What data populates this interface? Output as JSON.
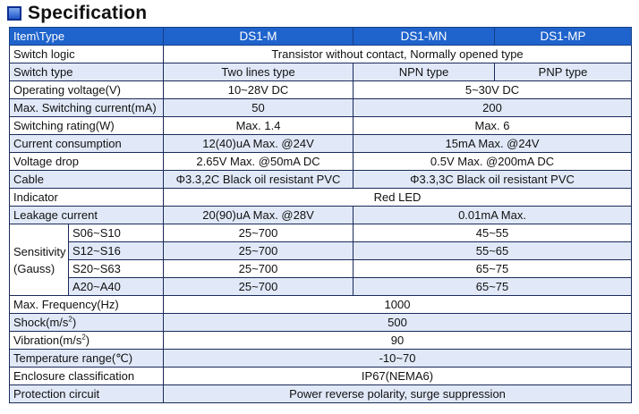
{
  "heading": {
    "title": "Specification",
    "icon": "square-bullet-icon"
  },
  "colors": {
    "header_bg": "#1f63cc",
    "shade_bg": "#e1e9f8",
    "border": "#1a2a5a"
  },
  "header": {
    "item": "Item\\Type",
    "m": "DS1-M",
    "mn": "DS1-MN",
    "mp": "DS1-MP"
  },
  "rows": {
    "switch_logic": {
      "label": "Switch logic",
      "all": "Transistor without contact, Normally opened type"
    },
    "switch_type": {
      "label": "Switch type",
      "m": "Two lines type",
      "mn": "NPN type",
      "mp": "PNP type"
    },
    "operating_voltage": {
      "label": "Operating voltage(V)",
      "m": "10~28V DC",
      "mn_mp": "5~30V DC"
    },
    "max_switching_current": {
      "label": "Max. Switching current(mA)",
      "m": "50",
      "mn_mp": "200"
    },
    "switching_rating": {
      "label": "Switching rating(W)",
      "m": "Max. 1.4",
      "mn_mp": "Max. 6"
    },
    "current_consumption": {
      "label": "Current consumption",
      "m": "12(40)uA Max. @24V",
      "mn_mp": "15mA Max. @24V"
    },
    "voltage_drop": {
      "label": "Voltage drop",
      "m": "2.65V Max. @50mA DC",
      "mn_mp": "0.5V Max. @200mA DC"
    },
    "cable": {
      "label": "Cable",
      "m": "Φ3.3,2C Black oil resistant PVC",
      "mn_mp": "Φ3.3,3C Black oil resistant PVC"
    },
    "indicator": {
      "label": "Indicator",
      "all": "Red LED"
    },
    "leakage_current": {
      "label": "Leakage current",
      "m": "20(90)uA Max. @28V",
      "mn_mp": "0.01mA Max."
    }
  },
  "sensitivity": {
    "label_line1": "Sensitivity",
    "label_line2": "(Gauss)",
    "items": [
      {
        "model": "S06~S10",
        "m": "25~700",
        "mn_mp": "45~55"
      },
      {
        "model": "S12~S16",
        "m": "25~700",
        "mn_mp": "55~65"
      },
      {
        "model": "S20~S63",
        "m": "25~700",
        "mn_mp": "65~75"
      },
      {
        "model": "A20~A40",
        "m": "25~700",
        "mn_mp": "65~75"
      }
    ]
  },
  "rows2": {
    "max_frequency": {
      "label": "Max. Frequency(Hz)",
      "all": "1000"
    },
    "shock": {
      "label_main": "Shock(m/s",
      "label_sup": "2",
      "label_end": ")",
      "all": "500"
    },
    "vibration": {
      "label_main": "Vibration(m/s",
      "label_sup": "2",
      "label_end": ")",
      "all": "90"
    },
    "temperature_range": {
      "label": "Temperature range(℃)",
      "all": "-10~70"
    },
    "enclosure": {
      "label": "Enclosure classification",
      "all": "IP67(NEMA6)"
    },
    "protection": {
      "label": "Protection circuit",
      "all": "Power reverse polarity, surge suppression"
    }
  }
}
